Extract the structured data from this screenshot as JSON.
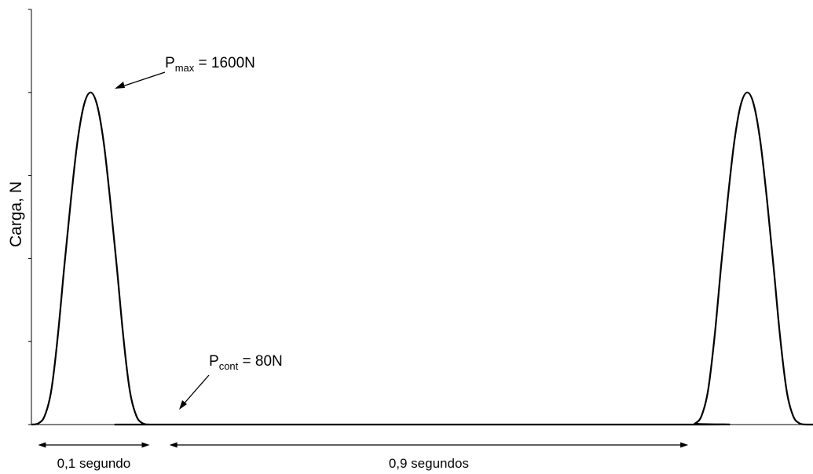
{
  "chart_data": {
    "type": "line",
    "ylabel": "Carga, N",
    "xlabel": "",
    "ylim": [
      0,
      2000
    ],
    "xlim": [
      0,
      1.19
    ],
    "yticks": [
      0,
      400,
      800,
      1200,
      1600,
      2000
    ],
    "series": [
      {
        "x": [
          0,
          0.01,
          0.02,
          0.03,
          0.04,
          0.05,
          0.06,
          0.07,
          0.08,
          0.09,
          0.1,
          0.11,
          0.12,
          0.13,
          0.14,
          0.15,
          0.16,
          0.17,
          0.18,
          0.19,
          1.0,
          1.01,
          1.02,
          1.03,
          1.04,
          1.05,
          1.06,
          1.07,
          1.08,
          1.09,
          1.1,
          1.11,
          1.12,
          1.13,
          1.14,
          1.15,
          1.16,
          1.17,
          1.18,
          1.19
        ],
        "values": [
          0,
          5,
          40,
          160,
          420,
          760,
          1080,
          1360,
          1540,
          1600,
          1540,
          1360,
          1080,
          760,
          420,
          160,
          40,
          5,
          0,
          0,
          0,
          5,
          40,
          160,
          420,
          760,
          1080,
          1360,
          1540,
          1600,
          1540,
          1360,
          1080,
          760,
          420,
          160,
          40,
          5,
          0,
          0
        ]
      }
    ],
    "grid": false,
    "legend": "none",
    "annotations": {
      "pmax": {
        "base": "P",
        "sub": "max",
        "rest": " = 1600N"
      },
      "pcont": {
        "base": "P",
        "sub": "cont",
        "rest": " = 80N"
      }
    },
    "intervals": [
      {
        "label": "0,1 segundo",
        "x_start": 0.01,
        "x_end": 0.18
      },
      {
        "label": "0,9 segundos",
        "x_start": 0.21,
        "x_end": 1.0
      }
    ],
    "colors": {
      "line": "#000000",
      "axis": "#000000",
      "background": "#ffffff"
    }
  }
}
